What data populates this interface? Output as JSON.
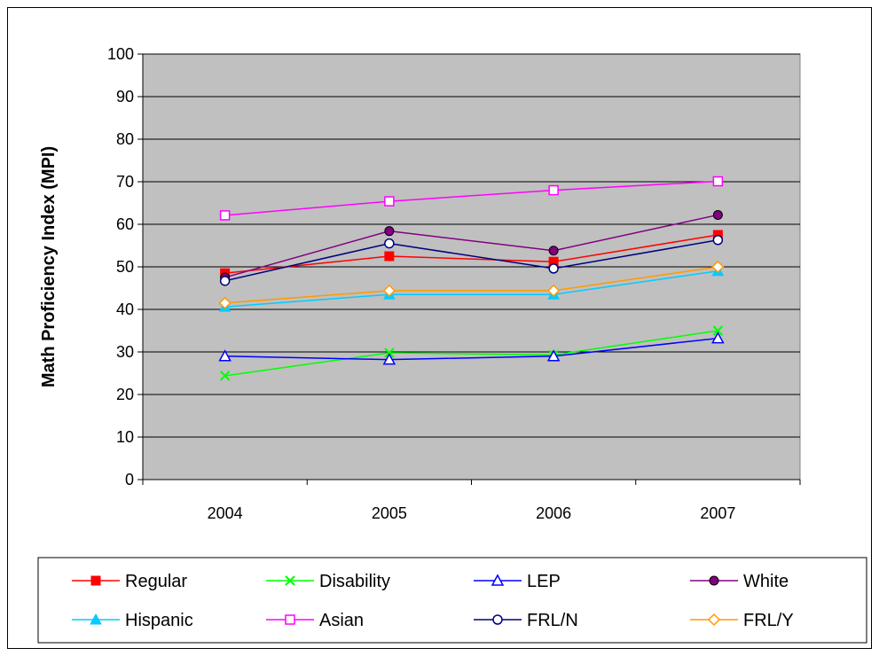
{
  "chart_data": {
    "type": "line",
    "title": "",
    "xlabel": "",
    "ylabel": "Math Proficiency Index (MPI)",
    "categories": [
      "2004",
      "2005",
      "2006",
      "2007"
    ],
    "ylim": [
      0,
      100
    ],
    "yticks": [
      0,
      10,
      20,
      30,
      40,
      50,
      60,
      70,
      80,
      90,
      100
    ],
    "grid": true,
    "plot_background": "#C0C0C0",
    "legend_position": "bottom",
    "series": [
      {
        "name": "Regular",
        "values": [
          48.5,
          52.5,
          51.2,
          57.5
        ],
        "color": "#FF0000",
        "marker": "square-filled"
      },
      {
        "name": "Disability",
        "values": [
          24.4,
          29.8,
          29.3,
          35.0
        ],
        "color": "#00FF00",
        "marker": "x"
      },
      {
        "name": "LEP",
        "values": [
          29.0,
          28.2,
          29.0,
          33.2
        ],
        "color": "#0000FF",
        "marker": "triangle-open"
      },
      {
        "name": "White",
        "values": [
          47.5,
          58.4,
          53.8,
          62.2
        ],
        "color": "#800080",
        "marker": "circle-filled"
      },
      {
        "name": "Hispanic",
        "values": [
          40.6,
          43.5,
          43.5,
          49.0
        ],
        "color": "#00CCFF",
        "marker": "triangle-filled"
      },
      {
        "name": "Asian",
        "values": [
          62.1,
          65.4,
          68.0,
          70.1
        ],
        "color": "#FF00FF",
        "marker": "square-open"
      },
      {
        "name": "FRL/N",
        "values": [
          46.7,
          55.5,
          49.6,
          56.3
        ],
        "color": "#000080",
        "marker": "circle-open"
      },
      {
        "name": "FRL/Y",
        "values": [
          41.5,
          44.4,
          44.4,
          50.0
        ],
        "color": "#FF9900",
        "marker": "diamond-open"
      }
    ]
  }
}
